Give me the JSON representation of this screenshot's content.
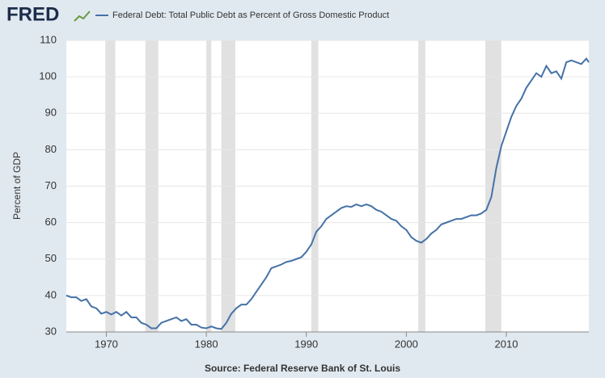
{
  "logo": "FRED",
  "chart_data": {
    "type": "line",
    "title": "Federal Debt: Total Public Debt as Percent of Gross Domestic Product",
    "ylabel": "Percent of GDP",
    "source": "Source: Federal Reserve Bank of St. Louis",
    "x": [
      1966.0,
      1966.5,
      1967.0,
      1967.5,
      1968.0,
      1968.5,
      1969.0,
      1969.5,
      1970.0,
      1970.5,
      1971.0,
      1971.5,
      1972.0,
      1972.5,
      1973.0,
      1973.5,
      1974.0,
      1974.5,
      1975.0,
      1975.5,
      1976.0,
      1976.5,
      1977.0,
      1977.5,
      1978.0,
      1978.5,
      1979.0,
      1979.5,
      1980.0,
      1980.5,
      1981.0,
      1981.5,
      1982.0,
      1982.5,
      1983.0,
      1983.5,
      1984.0,
      1984.5,
      1985.0,
      1985.5,
      1986.0,
      1986.5,
      1987.0,
      1987.5,
      1988.0,
      1988.5,
      1989.0,
      1989.5,
      1990.0,
      1990.5,
      1991.0,
      1991.5,
      1992.0,
      1992.5,
      1993.0,
      1993.5,
      1994.0,
      1994.5,
      1995.0,
      1995.5,
      1996.0,
      1996.5,
      1997.0,
      1997.5,
      1998.0,
      1998.5,
      1999.0,
      1999.5,
      2000.0,
      2000.5,
      2001.0,
      2001.5,
      2002.0,
      2002.5,
      2003.0,
      2003.5,
      2004.0,
      2004.5,
      2005.0,
      2005.5,
      2006.0,
      2006.5,
      2007.0,
      2007.5,
      2008.0,
      2008.5,
      2009.0,
      2009.5,
      2010.0,
      2010.5,
      2011.0,
      2011.5,
      2012.0,
      2012.5,
      2013.0,
      2013.5,
      2014.0,
      2014.5,
      2015.0,
      2015.5,
      2016.0,
      2016.5,
      2017.0,
      2017.5,
      2018.0,
      2018.25
    ],
    "series": [
      {
        "name": "Federal Debt: Total Public Debt as Percent of Gross Domestic Product",
        "color": "#4572a7",
        "values": [
          40,
          39.5,
          39.5,
          38.5,
          39,
          37,
          36.5,
          35,
          35.5,
          34.8,
          35.5,
          34.5,
          35.5,
          34,
          34,
          32.5,
          32,
          31,
          31,
          32.5,
          33,
          33.5,
          34,
          33,
          33.5,
          32,
          32,
          31.2,
          31,
          31.5,
          31,
          30.8,
          32.5,
          35,
          36.5,
          37.5,
          37.5,
          39,
          41,
          43,
          45,
          47.5,
          48,
          48.5,
          49.2,
          49.5,
          50,
          50.5,
          52,
          54,
          57.5,
          59,
          61,
          62,
          63,
          64,
          64.5,
          64.3,
          65,
          64.5,
          65,
          64.5,
          63.5,
          63,
          62,
          61,
          60.5,
          59,
          58,
          56,
          55,
          54.5,
          55.5,
          57,
          58,
          59.5,
          60,
          60.5,
          61,
          61,
          61.5,
          62,
          62,
          62.5,
          63.5,
          67,
          75,
          81,
          85,
          89,
          92,
          94,
          97,
          99,
          101,
          100,
          103,
          101,
          101.5,
          99.5,
          104,
          104.5,
          104,
          103.5,
          105,
          104
        ]
      }
    ],
    "recessions": [
      [
        1969.9,
        1970.9
      ],
      [
        1973.9,
        1975.2
      ],
      [
        1980.0,
        1980.5
      ],
      [
        1981.5,
        1982.9
      ],
      [
        1990.5,
        1991.2
      ],
      [
        2001.2,
        2001.9
      ],
      [
        2007.9,
        2009.5
      ]
    ],
    "xlim": [
      1966,
      2018.25
    ],
    "xticks": [
      1970,
      1980,
      1990,
      2000,
      2010
    ],
    "ylim": [
      30,
      110
    ],
    "yticks": [
      30,
      40,
      50,
      60,
      70,
      80,
      90,
      100,
      110
    ],
    "grid": true
  }
}
